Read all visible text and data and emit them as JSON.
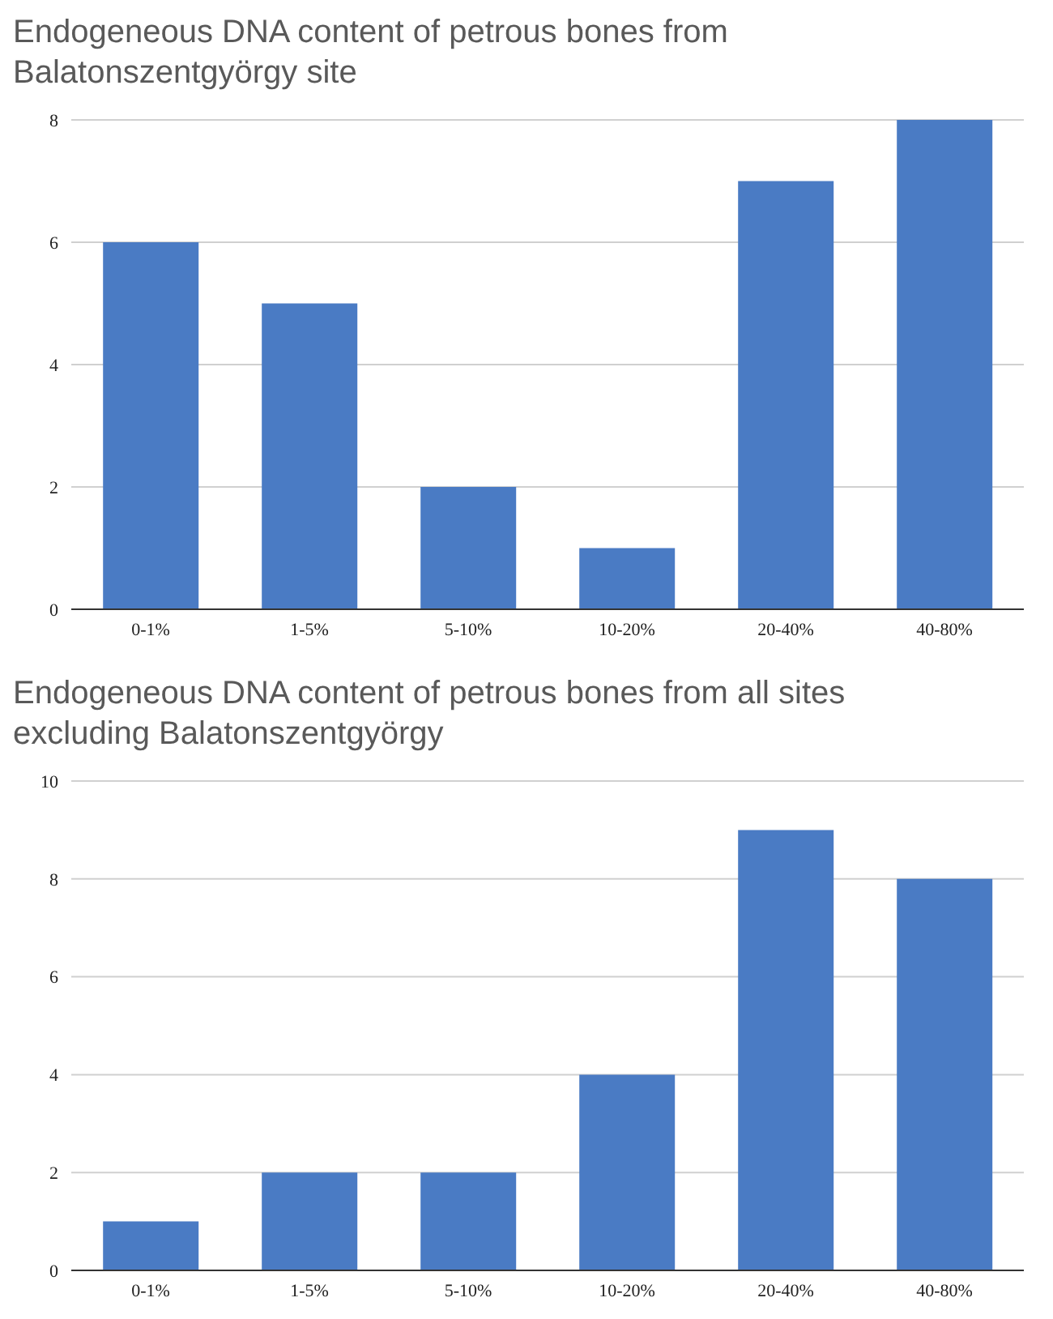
{
  "chart_data": [
    {
      "type": "bar",
      "title": "Endogeneous DNA content of petrous bones from Balatonszentgyörgy site",
      "categories": [
        "0-1%",
        "1-5%",
        "5-10%",
        "10-20%",
        "20-40%",
        "40-80%"
      ],
      "values": [
        6,
        5,
        2,
        1,
        7,
        8
      ],
      "color": "#4a7bc4",
      "ylim": [
        0,
        8
      ],
      "yticks": [
        0,
        2,
        4,
        6,
        8
      ],
      "grid": "y"
    },
    {
      "type": "bar",
      "title": "Endogeneous DNA content of petrous bones from all sites excluding Balatonszentgyörgy",
      "categories": [
        "0-1%",
        "1-5%",
        "5-10%",
        "10-20%",
        "20-40%",
        "40-80%"
      ],
      "values": [
        1,
        2,
        2,
        4,
        9,
        8
      ],
      "color": "#4a7bc4",
      "ylim": [
        0,
        10
      ],
      "yticks": [
        0,
        2,
        4,
        6,
        8,
        10
      ],
      "grid": "y"
    }
  ]
}
